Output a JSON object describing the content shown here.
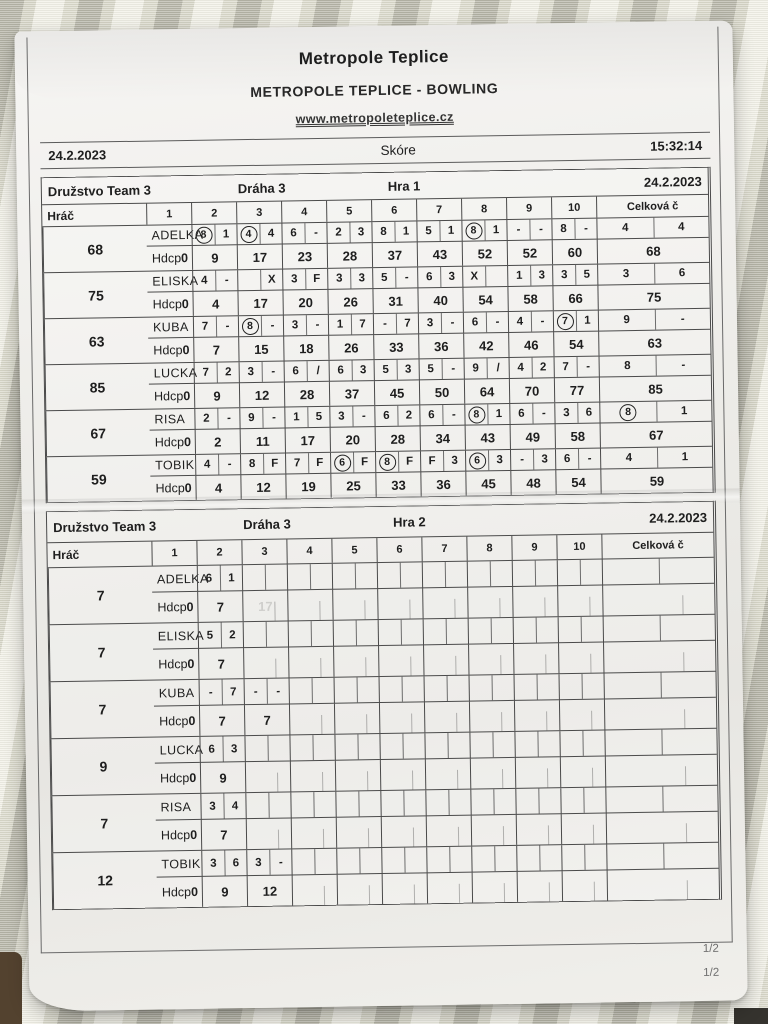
{
  "header": {
    "title": "Metropole Teplice",
    "subtitle": "METROPOLE TEPLICE - BOWLING",
    "website": "www.metropoleteplice.cz",
    "date_left": "24.2.2023",
    "score_label": "Skóre",
    "time_right": "15:32:14"
  },
  "table_labels": {
    "team_label": "Družstvo",
    "team_name": "Team 3",
    "lane_label": "Dráha 3",
    "player_col": "Hráč",
    "hdcp_label": "Hdcp",
    "frame_numbers": [
      "1",
      "2",
      "3",
      "4",
      "5",
      "6",
      "7",
      "8",
      "9",
      "10"
    ],
    "total_col": "Celková č"
  },
  "games": [
    {
      "name_label": "Hra 1",
      "date": "24.2.2023",
      "players": [
        {
          "name": "ADELKA",
          "hdcp": "0",
          "frames": [
            [
              "(8)",
              "1"
            ],
            [
              "(4)",
              "4"
            ],
            [
              "6",
              "-"
            ],
            [
              "2",
              "3"
            ],
            [
              "8",
              "1"
            ],
            [
              "5",
              "1"
            ],
            [
              "(8)",
              "1"
            ],
            [
              "-",
              "-"
            ],
            [
              "8",
              "-"
            ],
            [
              "4",
              "4"
            ]
          ],
          "cum": [
            "9",
            "17",
            "23",
            "28",
            "37",
            "43",
            "52",
            "52",
            "60",
            "68"
          ],
          "total": "68"
        },
        {
          "name": "ELISKA",
          "hdcp": "0",
          "frames": [
            [
              "4",
              "-"
            ],
            [
              "",
              "X"
            ],
            [
              "3",
              "F"
            ],
            [
              "3",
              "3"
            ],
            [
              "5",
              "-"
            ],
            [
              "6",
              "3"
            ],
            [
              "X",
              ""
            ],
            [
              "1",
              "3"
            ],
            [
              "3",
              "5"
            ],
            [
              "3",
              "6"
            ]
          ],
          "cum": [
            "4",
            "17",
            "20",
            "26",
            "31",
            "40",
            "54",
            "58",
            "66",
            "75"
          ],
          "total": "75"
        },
        {
          "name": "KUBA",
          "hdcp": "0",
          "frames": [
            [
              "7",
              "-"
            ],
            [
              "(8)",
              "-"
            ],
            [
              "3",
              "-"
            ],
            [
              "1",
              "7"
            ],
            [
              "-",
              "7"
            ],
            [
              "3",
              "-"
            ],
            [
              "6",
              "-"
            ],
            [
              "4",
              "-"
            ],
            [
              "(7)",
              "1"
            ],
            [
              "9",
              "-"
            ]
          ],
          "cum": [
            "7",
            "15",
            "18",
            "26",
            "33",
            "36",
            "42",
            "46",
            "54",
            "63"
          ],
          "total": "63"
        },
        {
          "name": "LUCKA",
          "hdcp": "0",
          "frames": [
            [
              "7",
              "2"
            ],
            [
              "3",
              "-"
            ],
            [
              "6",
              "/"
            ],
            [
              "6",
              "3"
            ],
            [
              "5",
              "3"
            ],
            [
              "5",
              "-"
            ],
            [
              "9",
              "/"
            ],
            [
              "4",
              "2"
            ],
            [
              "7",
              "-"
            ],
            [
              "8",
              "-"
            ]
          ],
          "cum": [
            "9",
            "12",
            "28",
            "37",
            "45",
            "50",
            "64",
            "70",
            "77",
            "85"
          ],
          "total": "85"
        },
        {
          "name": "RISA",
          "hdcp": "0",
          "frames": [
            [
              "2",
              "-"
            ],
            [
              "9",
              "-"
            ],
            [
              "1",
              "5"
            ],
            [
              "3",
              "-"
            ],
            [
              "6",
              "2"
            ],
            [
              "6",
              "-"
            ],
            [
              "(8)",
              "1"
            ],
            [
              "6",
              "-"
            ],
            [
              "3",
              "6"
            ],
            [
              "(8)",
              "1"
            ]
          ],
          "cum": [
            "2",
            "11",
            "17",
            "20",
            "28",
            "34",
            "43",
            "49",
            "58",
            "67"
          ],
          "total": "67"
        },
        {
          "name": "TOBIK",
          "hdcp": "0",
          "frames": [
            [
              "4",
              "-"
            ],
            [
              "8",
              "F"
            ],
            [
              "7",
              "F"
            ],
            [
              "(6)",
              "F"
            ],
            [
              "(8)",
              "F"
            ],
            [
              "F",
              "3"
            ],
            [
              "(6)",
              "3"
            ],
            [
              "-",
              "3"
            ],
            [
              "6",
              "-"
            ],
            [
              "4",
              "1"
            ]
          ],
          "cum": [
            "4",
            "12",
            "19",
            "25",
            "33",
            "36",
            "45",
            "48",
            "54",
            "59"
          ],
          "total": "59"
        }
      ]
    },
    {
      "name_label": "Hra 2",
      "date": "24.2.2023",
      "players": [
        {
          "name": "ADELKA",
          "hdcp": "0",
          "frames": [
            [
              "6",
              "1"
            ]
          ],
          "cum": [
            "7"
          ],
          "ghost_cum": [
            "",
            "17"
          ],
          "total": "7"
        },
        {
          "name": "ELISKA",
          "hdcp": "0",
          "frames": [
            [
              "5",
              "2"
            ]
          ],
          "cum": [
            "7"
          ],
          "total": "7"
        },
        {
          "name": "KUBA",
          "hdcp": "0",
          "frames": [
            [
              "-",
              "7"
            ],
            [
              "-",
              "-"
            ]
          ],
          "cum": [
            "7",
            "7"
          ],
          "total": "7"
        },
        {
          "name": "LUCKA",
          "hdcp": "0",
          "frames": [
            [
              "6",
              "3"
            ]
          ],
          "cum": [
            "9"
          ],
          "total": "9"
        },
        {
          "name": "RISA",
          "hdcp": "0",
          "frames": [
            [
              "3",
              "4"
            ]
          ],
          "cum": [
            "7"
          ],
          "total": "7"
        },
        {
          "name": "TOBIK",
          "hdcp": "0",
          "frames": [
            [
              "3",
              "6"
            ],
            [
              "3",
              "-"
            ]
          ],
          "cum": [
            "9",
            "12"
          ],
          "total": "12"
        }
      ]
    }
  ],
  "page": {
    "footer_marks": [
      "1/2",
      "1/2"
    ]
  }
}
